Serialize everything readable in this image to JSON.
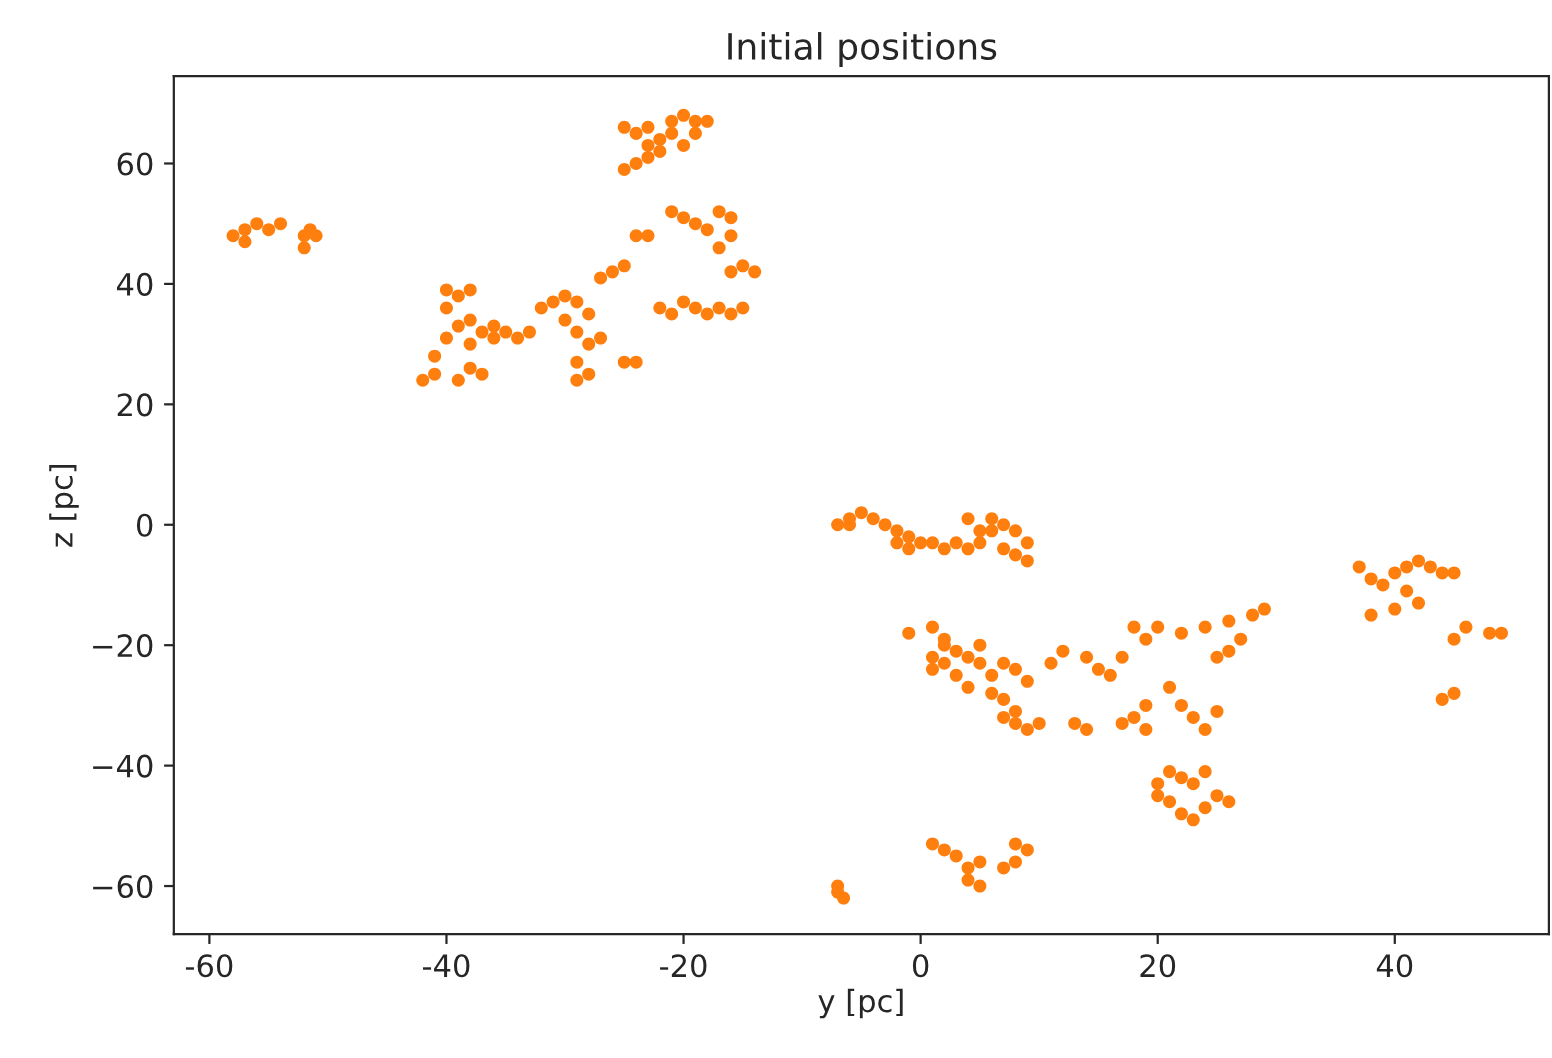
{
  "chart_data": {
    "type": "scatter",
    "title": "Initial positions",
    "xlabel": "y [pc]",
    "ylabel": "z [pc]",
    "xlim": [
      -63,
      53
    ],
    "ylim": [
      -68,
      74.5
    ],
    "xticks": [
      -60,
      -40,
      -20,
      0,
      20,
      40
    ],
    "yticks": [
      {
        "value": -60,
        "label": "−60"
      },
      {
        "value": -40,
        "label": "−40"
      },
      {
        "value": -20,
        "label": "−20"
      },
      0,
      20,
      40,
      60
    ],
    "grid": false,
    "marker": "circle",
    "series": [
      {
        "color": "#ff7f0e",
        "x": [
          -58,
          -57,
          -56,
          -55,
          -54,
          -57,
          -52,
          -51,
          -52,
          -51.5,
          -25,
          -24,
          -23,
          -22,
          -21,
          -20,
          -19,
          -18,
          -22,
          -23,
          -24,
          -25,
          -21,
          -20,
          -23,
          -19,
          -21,
          -20,
          -19,
          -18,
          -17,
          -16,
          -16,
          -17,
          -15,
          -14,
          -16,
          -24,
          -23,
          -22,
          -21,
          -20,
          -19,
          -18,
          -16,
          -17,
          -15,
          -40,
          -39,
          -38,
          -40,
          -39,
          -40,
          -41,
          -38,
          -37,
          -36,
          -35,
          -34,
          -33,
          -38,
          -37,
          -39,
          -42,
          -41,
          -38,
          -36,
          -32,
          -31,
          -30,
          -29,
          -28,
          -30,
          -29,
          -28,
          -27,
          -29,
          -28,
          -29,
          -27,
          -26,
          -25,
          -25,
          -24,
          -7,
          -6,
          -5,
          -4,
          -3,
          -2,
          -1,
          0,
          1,
          2,
          -1,
          3,
          4,
          5,
          6,
          7,
          8,
          9,
          8,
          9,
          5,
          7,
          4,
          6,
          -6,
          -2,
          -1,
          1,
          2,
          3,
          2,
          1,
          4,
          5,
          6,
          3,
          4,
          7,
          8,
          9,
          6,
          7,
          7,
          8,
          9,
          10,
          8,
          2,
          5,
          1,
          11,
          12,
          14,
          15,
          16,
          17,
          18,
          19,
          20,
          22,
          24,
          26,
          28,
          29,
          27,
          26,
          25,
          17,
          18,
          19,
          19,
          21,
          22,
          23,
          24,
          25,
          13,
          14,
          20,
          21,
          22,
          23,
          24,
          21,
          22,
          23,
          24,
          25,
          26,
          20,
          37,
          38,
          39,
          40,
          41,
          42,
          43,
          44,
          41,
          42,
          40,
          38,
          45,
          45,
          46,
          48,
          49,
          44,
          45,
          1,
          2,
          3,
          4,
          5,
          4,
          5,
          8,
          9,
          8,
          7,
          -7,
          -7,
          -6.5
        ],
        "values": [
          48,
          49,
          50,
          49,
          50,
          47,
          48,
          48,
          46,
          49,
          66,
          65,
          66,
          64,
          67,
          68,
          67,
          67,
          62,
          61,
          60,
          59,
          65,
          63,
          63,
          65,
          52,
          51,
          50,
          49,
          52,
          51,
          48,
          46,
          43,
          42,
          42,
          48,
          48,
          36,
          35,
          37,
          36,
          35,
          35,
          36,
          36,
          39,
          38,
          39,
          36,
          33,
          31,
          28,
          30,
          32,
          33,
          32,
          31,
          32,
          26,
          25,
          24,
          24,
          25,
          34,
          31,
          36,
          37,
          38,
          37,
          35,
          34,
          32,
          30,
          31,
          27,
          25,
          24,
          41,
          42,
          43,
          27,
          27,
          0,
          1,
          2,
          1,
          0,
          -1,
          -2,
          -3,
          -3,
          -4,
          -4,
          -3,
          1,
          -1,
          -1,
          0,
          -1,
          -3,
          -5,
          -6,
          -3,
          -4,
          -4,
          1,
          0,
          -3,
          -18,
          -17,
          -19,
          -21,
          -23,
          -24,
          -22,
          -23,
          -25,
          -25,
          -27,
          -23,
          -24,
          -26,
          -28,
          -29,
          -32,
          -33,
          -34,
          -33,
          -31,
          -20,
          -20,
          -22,
          -23,
          -21,
          -22,
          -24,
          -25,
          -22,
          -17,
          -19,
          -17,
          -18,
          -17,
          -16,
          -15,
          -14,
          -19,
          -21,
          -22,
          -33,
          -32,
          -30,
          -34,
          -27,
          -30,
          -32,
          -34,
          -31,
          -33,
          -34,
          -43,
          -41,
          -42,
          -43,
          -41,
          -46,
          -48,
          -49,
          -47,
          -45,
          -46,
          -45,
          -7,
          -9,
          -10,
          -8,
          -7,
          -6,
          -7,
          -8,
          -11,
          -13,
          -14,
          -15,
          -8,
          -19,
          -17,
          -18,
          -18,
          -29,
          -28,
          -53,
          -54,
          -55,
          -57,
          -56,
          -59,
          -60,
          -53,
          -54,
          -56,
          -57,
          -60,
          -61,
          -62
        ]
      }
    ]
  }
}
